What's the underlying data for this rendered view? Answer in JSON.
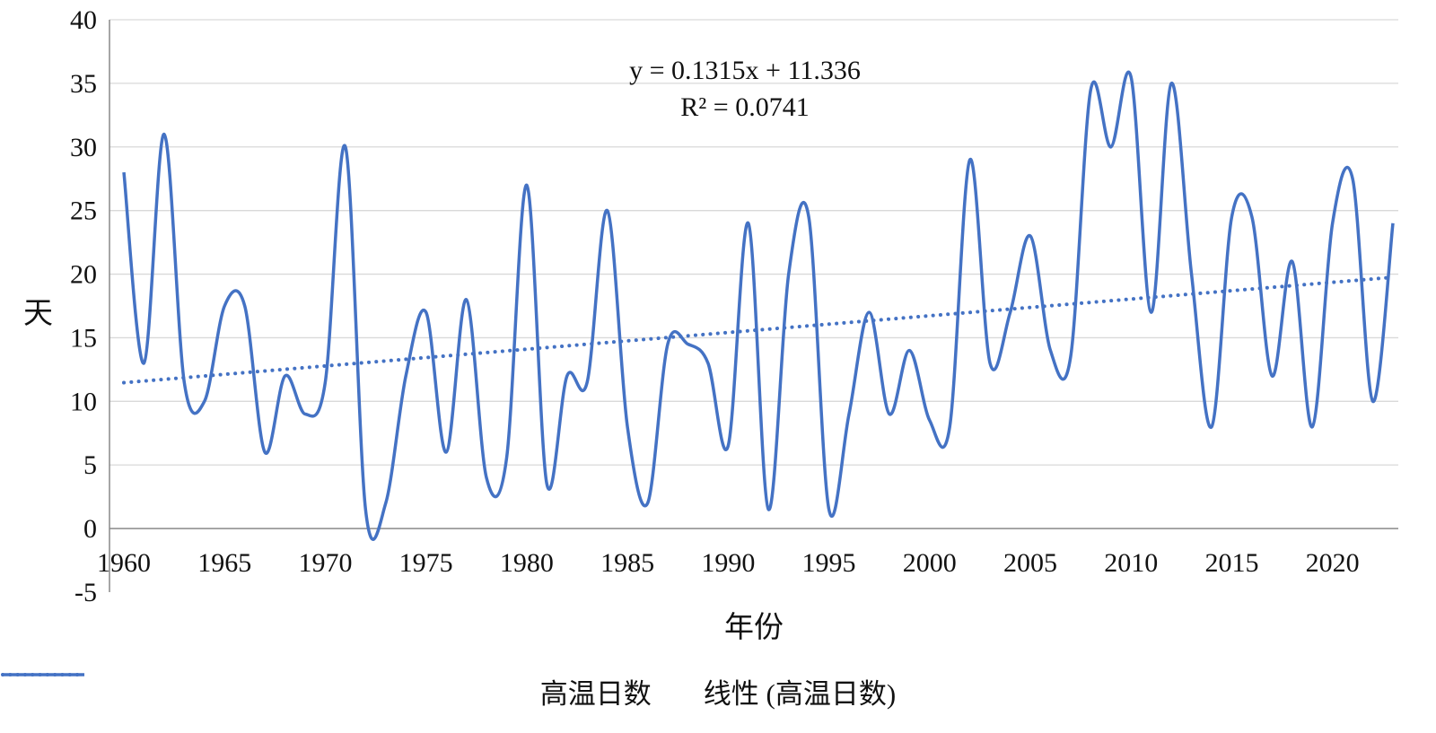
{
  "chart_data": {
    "type": "line",
    "title": "",
    "xlabel": "年份",
    "ylabel": "天",
    "ylim": [
      -5,
      40
    ],
    "ytick_step": 5,
    "yticks": [
      40,
      35,
      30,
      25,
      20,
      15,
      10,
      5,
      0,
      -5
    ],
    "xticks": [
      1960,
      1965,
      1970,
      1975,
      1980,
      1985,
      1990,
      1995,
      2000,
      2005,
      2010,
      2015,
      2020
    ],
    "grid": true,
    "legend_position": "bottom",
    "line_color": "#4472C4",
    "grid_color": "#D9D9D9",
    "axis_color": "#898989",
    "categories": [
      1960,
      1961,
      1962,
      1963,
      1964,
      1965,
      1966,
      1967,
      1968,
      1969,
      1970,
      1971,
      1972,
      1973,
      1974,
      1975,
      1976,
      1977,
      1978,
      1979,
      1980,
      1981,
      1982,
      1983,
      1984,
      1985,
      1986,
      1987,
      1988,
      1989,
      1990,
      1991,
      1992,
      1993,
      1994,
      1995,
      1996,
      1997,
      1998,
      1999,
      2000,
      2001,
      2002,
      2003,
      2004,
      2005,
      2006,
      2007,
      2008,
      2009,
      2010,
      2011,
      2012,
      2013,
      2014,
      2015,
      2016,
      2017,
      2018,
      2019,
      2020,
      2021,
      2022,
      2023
    ],
    "series": [
      {
        "name": "高温日数",
        "values": [
          28,
          13,
          31,
          11.5,
          10,
          17.5,
          17.5,
          6,
          12,
          9,
          11.5,
          30,
          1.5,
          2,
          12,
          17,
          6,
          18,
          4,
          5.5,
          27,
          3.5,
          12,
          11.5,
          25,
          8,
          2,
          14.5,
          14.5,
          13,
          6.5,
          24,
          1.5,
          20,
          24.5,
          1.5,
          9,
          17,
          9,
          14,
          8.5,
          8,
          29,
          13,
          17,
          23,
          14,
          13.5,
          34.5,
          30,
          35.5,
          17,
          35,
          20,
          8,
          24.5,
          24.5,
          12,
          21,
          8,
          24,
          27.5,
          10,
          24
        ]
      }
    ],
    "trendline": {
      "name": "线性 (高温日数)",
      "slope": 0.1315,
      "intercept": 11.336,
      "equation": "y = 0.1315x + 11.336",
      "r_squared": "R² = 0.0741"
    }
  },
  "annotation": {
    "line1": "y = 0.1315x + 11.336",
    "line2": "R² = 0.0741"
  },
  "axes": {
    "y_title": "天",
    "x_title": "年份"
  },
  "legend": {
    "series_label": "高温日数",
    "trend_label": "线性 (高温日数)"
  }
}
